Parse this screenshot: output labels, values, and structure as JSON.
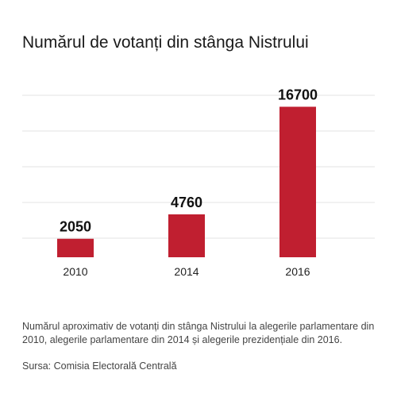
{
  "chart_data": {
    "type": "bar",
    "title": "Numărul de votanți din stânga Nistrului",
    "categories": [
      "2010",
      "2014",
      "2016"
    ],
    "values": [
      2050,
      4760,
      16700
    ],
    "xlabel": "",
    "ylabel": "",
    "ylim": [
      0,
      21000
    ],
    "grid": true,
    "legend": "none",
    "bar_color": "#c01f30",
    "grid_color": "#e3e3e3"
  },
  "caption": "Numărul aproximativ de votanți din stânga Nistrului la alegerile parlamentare din 2010, alegerile parlamentare din 2014 și alegerile prezidențiale din 2016.",
  "source": "Sursa: Comisia Electorală Centrală"
}
